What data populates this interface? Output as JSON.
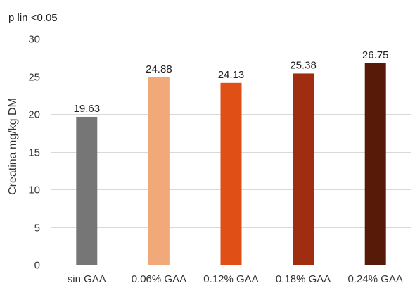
{
  "chart_data": {
    "type": "bar",
    "title": "",
    "annotation": "p lin <0.05",
    "xlabel": "",
    "ylabel": "Creatina mg/kg DM",
    "categories": [
      "sin GAA",
      "0.06% GAA",
      "0.12% GAA",
      "0.18% GAA",
      "0.24% GAA"
    ],
    "values": [
      19.63,
      24.88,
      24.13,
      25.38,
      26.75
    ],
    "data_labels": [
      "19.63",
      "24.88",
      "24.13",
      "25.38",
      "26.75"
    ],
    "colors": [
      "#767676",
      "#f2a97a",
      "#df4f16",
      "#a02d10",
      "#571a09"
    ],
    "ylim": [
      0,
      30
    ],
    "yticks": [
      0,
      5,
      10,
      15,
      20,
      25,
      30
    ],
    "grid": true,
    "legend": "none"
  }
}
